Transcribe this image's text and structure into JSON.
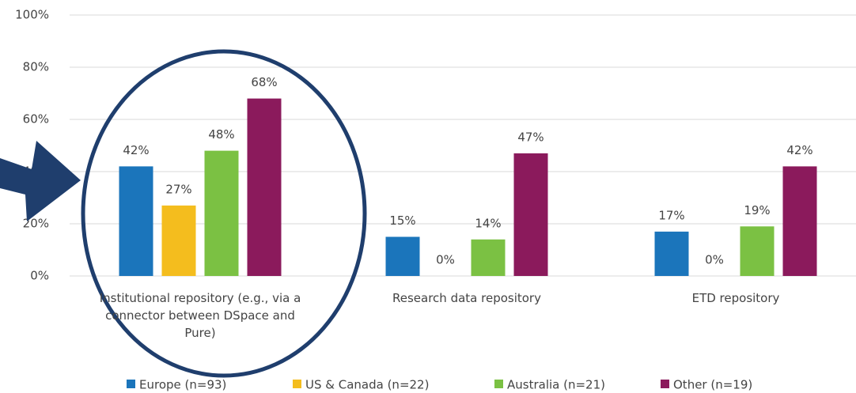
{
  "chart_data": {
    "type": "bar",
    "categories": [
      "Institutional repository (e.g., via a connector between DSpace and Pure)",
      "Research data repository",
      "ETD repository"
    ],
    "series": [
      {
        "name": "Europe (n=93)",
        "color": "#1b75bb",
        "values": [
          42,
          15,
          17
        ],
        "value_labels": [
          "42%",
          "15%",
          "17%"
        ]
      },
      {
        "name": "US & Canada (n=22)",
        "color": "#f4bd1e",
        "values": [
          27,
          0,
          0
        ],
        "value_labels": [
          "27%",
          "0%",
          "0%"
        ]
      },
      {
        "name": "Australia (n=21)",
        "color": "#7bc143",
        "values": [
          48,
          14,
          19
        ],
        "value_labels": [
          "48%",
          "14%",
          "19%"
        ]
      },
      {
        "name": "Other (n=19)",
        "color": "#8b1a5c",
        "values": [
          68,
          47,
          42
        ],
        "value_labels": [
          "68%",
          "47%",
          "42%"
        ]
      }
    ],
    "ylim": [
      0,
      100
    ],
    "yticks": [
      {
        "value": 0,
        "label": "0%"
      },
      {
        "value": 20,
        "label": "20%"
      },
      {
        "value": 40,
        "label": "40%"
      },
      {
        "value": 60,
        "label": "60%"
      },
      {
        "value": 80,
        "label": "80%"
      },
      {
        "value": 100,
        "label": "100%"
      }
    ],
    "grid": true
  }
}
